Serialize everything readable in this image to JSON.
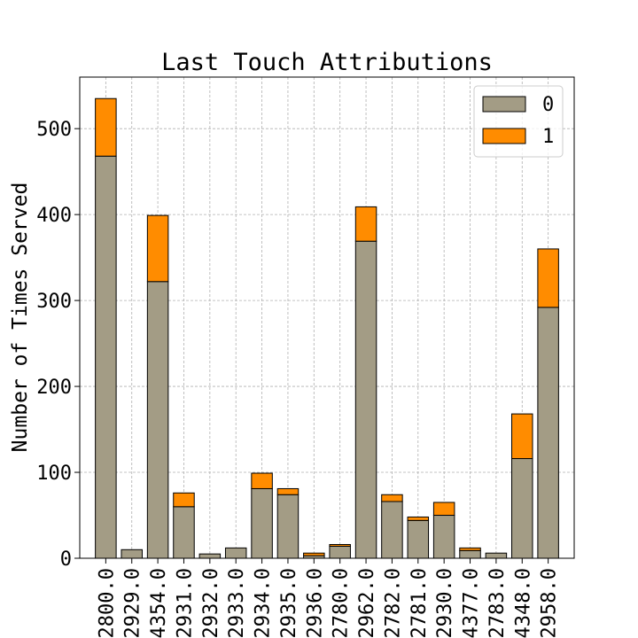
{
  "chart_data": {
    "type": "bar",
    "stacked": true,
    "title": "Last Touch Attributions",
    "xlabel": "",
    "ylabel": "Number of Times Served",
    "ylim": [
      0,
      560
    ],
    "yticks": [
      0,
      100,
      200,
      300,
      400,
      500
    ],
    "grid": true,
    "legend_position": "top-right",
    "categories": [
      "2800.0",
      "2929.0",
      "4354.0",
      "2931.0",
      "2932.0",
      "2933.0",
      "2934.0",
      "2935.0",
      "2936.0",
      "2780.0",
      "2962.0",
      "2782.0",
      "2781.0",
      "2930.0",
      "4377.0",
      "2783.0",
      "4348.0",
      "2958.0"
    ],
    "series": [
      {
        "name": "0",
        "color": "#a39c85",
        "values": [
          468,
          10,
          322,
          60,
          5,
          12,
          81,
          74,
          3,
          14,
          369,
          66,
          44,
          50,
          9,
          6,
          116,
          292
        ]
      },
      {
        "name": "1",
        "color": "#ff8c00",
        "values": [
          67,
          0,
          77,
          16,
          0,
          0,
          18,
          7,
          3,
          2,
          40,
          8,
          4,
          15,
          3,
          0,
          52,
          68
        ]
      }
    ]
  }
}
